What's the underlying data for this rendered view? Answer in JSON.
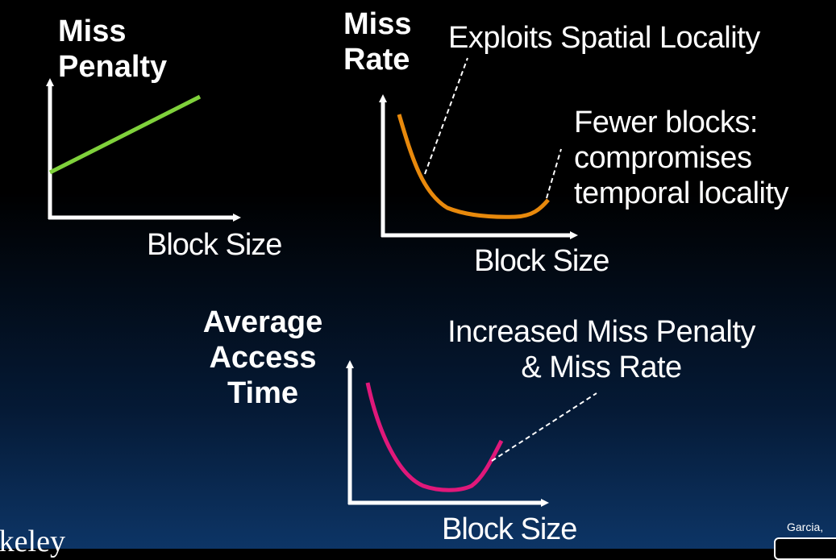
{
  "graph_miss_penalty": {
    "y_label_line1": "Miss",
    "y_label_line2": "Penalty",
    "x_label": "Block Size",
    "curve_color": "#7fd13b"
  },
  "graph_miss_rate": {
    "y_label_line1": "Miss",
    "y_label_line2": "Rate",
    "x_label": "Block Size",
    "curve_color": "#e8890c",
    "annotation_left": "Exploits Spatial Locality",
    "annotation_right_line1": "Fewer blocks:",
    "annotation_right_line2": "compromises",
    "annotation_right_line3": "temporal locality"
  },
  "graph_access_time": {
    "y_label_line1": "Average",
    "y_label_line2": "Access",
    "y_label_line3": "Time",
    "x_label": "Block Size",
    "curve_color": "#e0187a",
    "annotation_line1": "Increased Miss Penalty",
    "annotation_line2": "& Miss Rate"
  },
  "footer": {
    "logo_text": "rkeley",
    "credit": "Garcia,",
    "license_icon": "creative-commons-icon"
  }
}
